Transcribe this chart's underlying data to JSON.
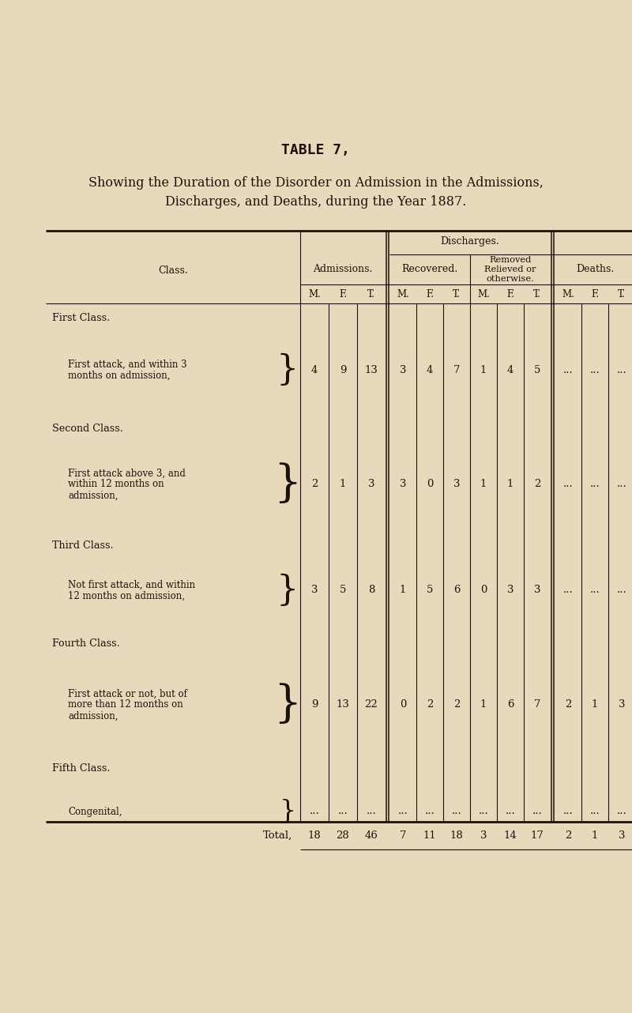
{
  "title": "TABLE 7,",
  "subtitle1": "Showing the Duration of the Disorder on Admission in the Admissions,",
  "subtitle2": "Discharges, and Deaths, during the Year 1887.",
  "bg_color": "#e8d9bc",
  "text_color": "#1c110a",
  "col_header_1": "Class.",
  "col_header_2": "Admissions.",
  "col_header_3": "Discharges.",
  "col_header_3a": "Recovered.",
  "col_header_3b": "Removed\nRelieved or\notherwise.",
  "col_header_4": "Deaths.",
  "subheader_mft": [
    "M.",
    "F.",
    "T."
  ],
  "rows": [
    {
      "class_title": "First Class.",
      "class_desc_lines": [
        "First attack, and within 3",
        "months on admission,"
      ],
      "bracket": "}",
      "adm": [
        "4",
        "9",
        "13"
      ],
      "rec": [
        "3",
        "4",
        "7"
      ],
      "rem": [
        "1",
        "4",
        "5"
      ],
      "dea": [
        "...",
        "...",
        "..."
      ]
    },
    {
      "class_title": "Second Class.",
      "class_desc_lines": [
        "First attack above 3, and",
        "within 12 months on",
        "admission,"
      ],
      "bracket": "}",
      "adm": [
        "2",
        "1",
        "3"
      ],
      "rec": [
        "3",
        "0",
        "3"
      ],
      "rem": [
        "1",
        "1",
        "2"
      ],
      "dea": [
        "...",
        "...",
        "..."
      ]
    },
    {
      "class_title": "Third Class.",
      "class_desc_lines": [
        "Not first attack, and within",
        "12 months on admission,"
      ],
      "bracket": "}",
      "adm": [
        "3",
        "5",
        "8"
      ],
      "rec": [
        "1",
        "5",
        "6"
      ],
      "rem": [
        "0",
        "3",
        "3"
      ],
      "dea": [
        "...",
        "...",
        "..."
      ]
    },
    {
      "class_title": "Fourth Class.",
      "class_desc_lines": [
        "First attack or not, but of",
        "more than 12 months on",
        "admission,"
      ],
      "bracket": "}",
      "adm": [
        "9",
        "13",
        "22"
      ],
      "rec": [
        "0",
        "2",
        "2"
      ],
      "rem": [
        "1",
        "6",
        "7"
      ],
      "dea": [
        "2",
        "1",
        "3"
      ]
    },
    {
      "class_title": "Fifth Class.",
      "class_desc_lines": [
        "Congenital,"
      ],
      "bracket": "}",
      "adm": [
        "...",
        "...",
        "..."
      ],
      "rec": [
        "...",
        "...",
        "..."
      ],
      "rem": [
        "...",
        "...",
        "..."
      ],
      "dea": [
        "...",
        "...",
        "..."
      ]
    }
  ],
  "total_row": {
    "label": "Total,",
    "adm": [
      "18",
      "28",
      "46"
    ],
    "rec": [
      "7",
      "11",
      "18"
    ],
    "rem": [
      "3",
      "14",
      "17"
    ],
    "dea": [
      "2",
      "1",
      "3"
    ]
  }
}
